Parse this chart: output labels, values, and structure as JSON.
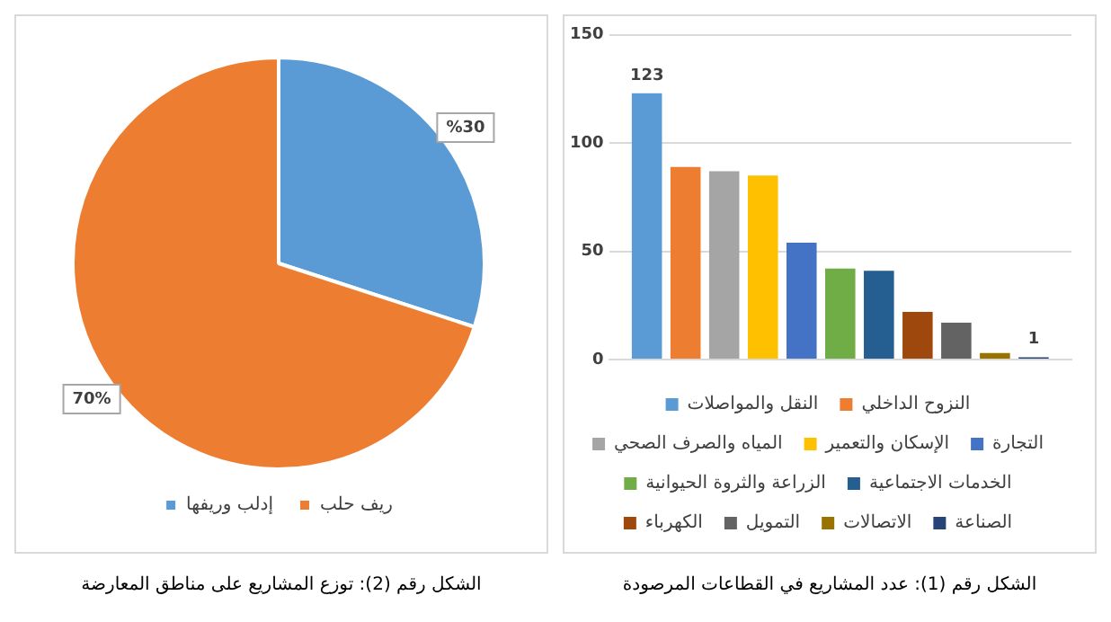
{
  "chart_data": [
    {
      "type": "pie",
      "categories": [
        "إدلب وريفها",
        "ريف حلب"
      ],
      "values": [
        30,
        70
      ],
      "value_labels": [
        "%30",
        "70%"
      ],
      "colors": [
        "#5b9bd5",
        "#ed7d31"
      ],
      "legend": "bottom",
      "annotations": [
        "الشكل رقم (2): توزع المشاريع على مناطق المعارضة"
      ]
    },
    {
      "type": "bar",
      "categories": [
        null
      ],
      "series": [
        {
          "name": "النقل والمواصلات",
          "color": "#5b9bd5",
          "values": [
            123
          ],
          "value_labels": [
            "123"
          ]
        },
        {
          "name": "النزوح الداخلي",
          "color": "#ed7d31",
          "values": [
            89
          ]
        },
        {
          "name": "المياه والصرف الصحي",
          "color": "#a5a5a5",
          "values": [
            87
          ]
        },
        {
          "name": "الإسكان والتعمير",
          "color": "#ffc000",
          "values": [
            85
          ]
        },
        {
          "name": "التجارة",
          "color": "#4472c4",
          "values": [
            54
          ]
        },
        {
          "name": "الزراعة والثروة الحيوانية",
          "color": "#70ad47",
          "values": [
            42
          ]
        },
        {
          "name": "الخدمات الاجتماعية",
          "color": "#255e91",
          "values": [
            41
          ]
        },
        {
          "name": "الكهرباء",
          "color": "#9e480e",
          "values": [
            22
          ]
        },
        {
          "name": "التمويل",
          "color": "#636363",
          "values": [
            17
          ]
        },
        {
          "name": "الاتصالات",
          "color": "#997300",
          "values": [
            3
          ]
        },
        {
          "name": "الصناعة",
          "color": "#264478",
          "values": [
            1
          ],
          "value_labels": [
            "1"
          ]
        }
      ],
      "ylim": [
        0,
        150
      ],
      "yticks": [
        0,
        50,
        100,
        150
      ],
      "grid": "y",
      "tick_labels": "y",
      "legend": "bottom",
      "annotations": [
        "الشكل رقم (1): عدد المشاريع في القطاعات المرصودة"
      ]
    }
  ]
}
